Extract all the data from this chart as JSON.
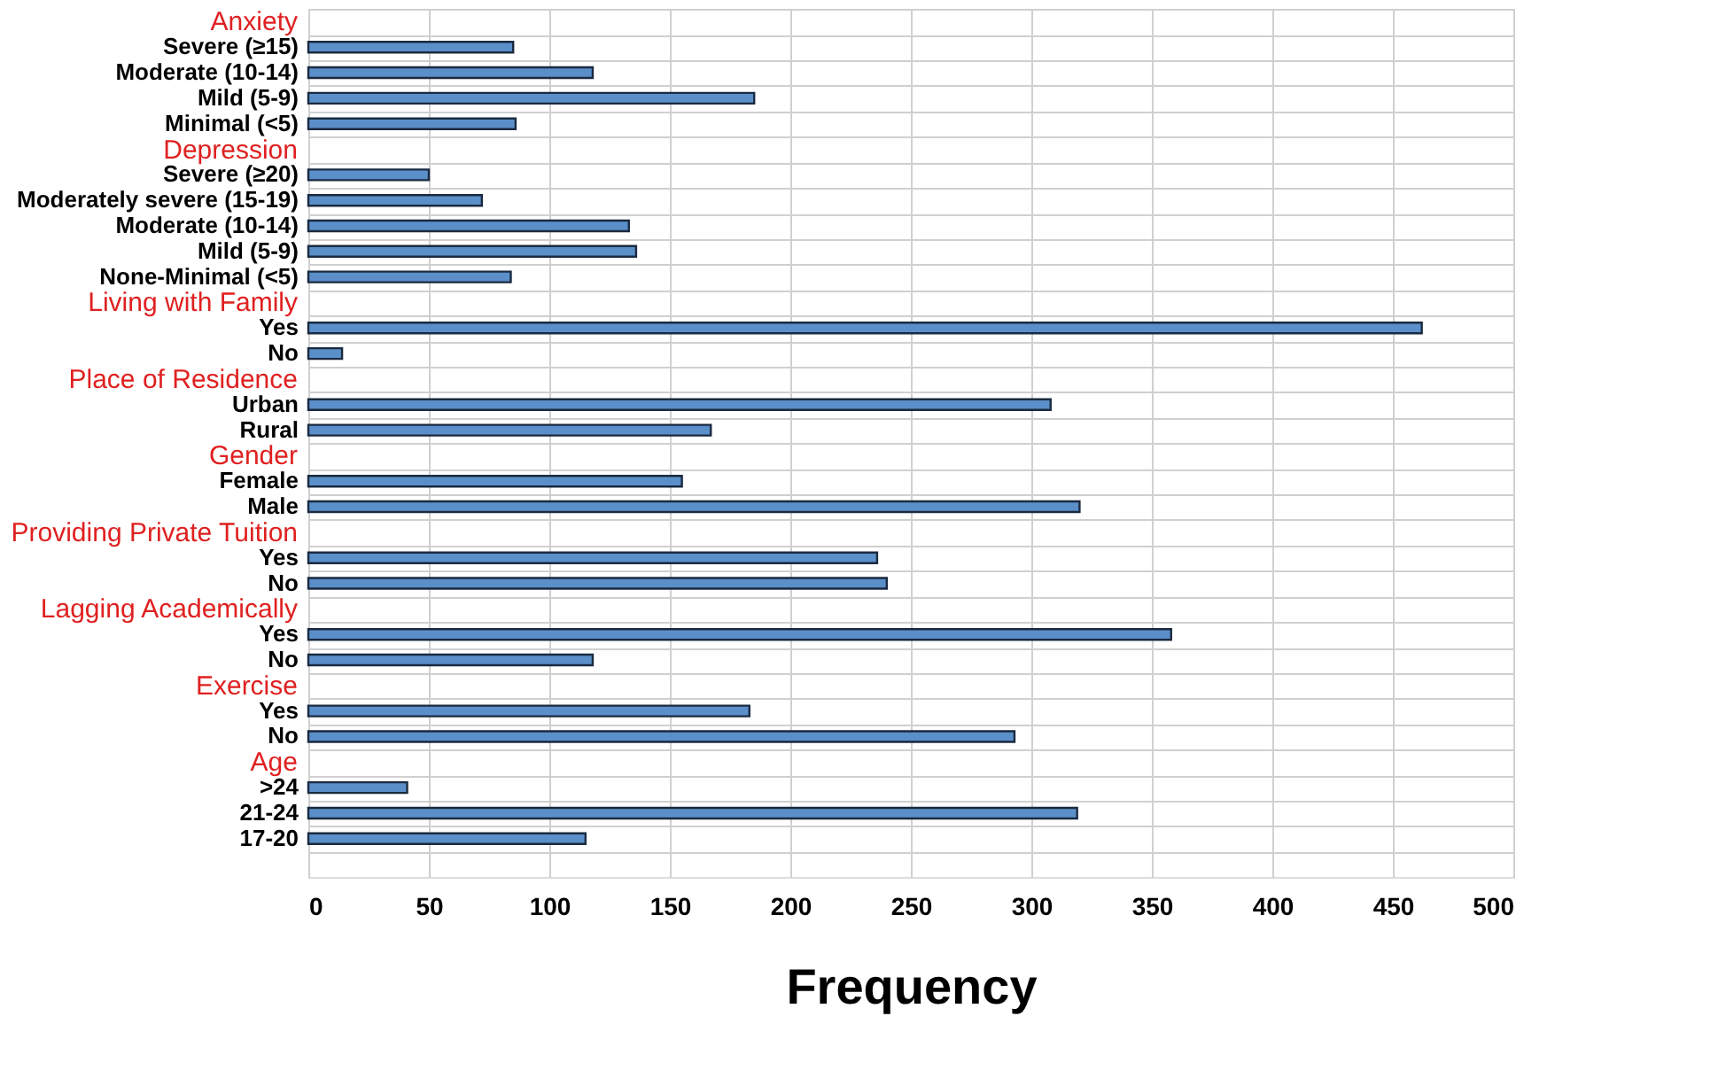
{
  "chart_data": {
    "type": "bar",
    "orientation": "horizontal",
    "xlabel": "Frequency",
    "categories": [
      null,
      "Severe (≥15)",
      "Moderate (10-14)",
      "Mild (5-9)",
      "Minimal (<5)",
      null,
      "Severe (≥20)",
      "Moderately severe (15-19)",
      "Moderate (10-14)",
      "Mild (5-9)",
      "None-Minimal (<5)",
      null,
      "Yes",
      "No",
      null,
      "Urban",
      "Rural",
      null,
      "Female",
      "Male",
      null,
      "Yes",
      "No",
      null,
      "Yes",
      "No",
      null,
      "Yes",
      "No",
      null,
      ">24",
      "21-24",
      "17-20",
      null
    ],
    "values": [
      null,
      85,
      118,
      185,
      86,
      null,
      50,
      72,
      133,
      136,
      84,
      null,
      462,
      14,
      null,
      308,
      167,
      null,
      155,
      320,
      null,
      236,
      240,
      null,
      358,
      118,
      null,
      183,
      293,
      null,
      41,
      319,
      115,
      null
    ],
    "color": "#5b8fc9",
    "annotations": [
      "Anxiety",
      "Depression",
      "Living with Family",
      "Place of Residence",
      "Gender",
      "Providing Private Tuition",
      "Lagging Academically",
      "Exercise",
      "Age"
    ],
    "xlim": [
      0,
      500
    ],
    "xticks": [
      0,
      50,
      100,
      150,
      200,
      250,
      300,
      350,
      400,
      450,
      500
    ],
    "grid": true
  }
}
